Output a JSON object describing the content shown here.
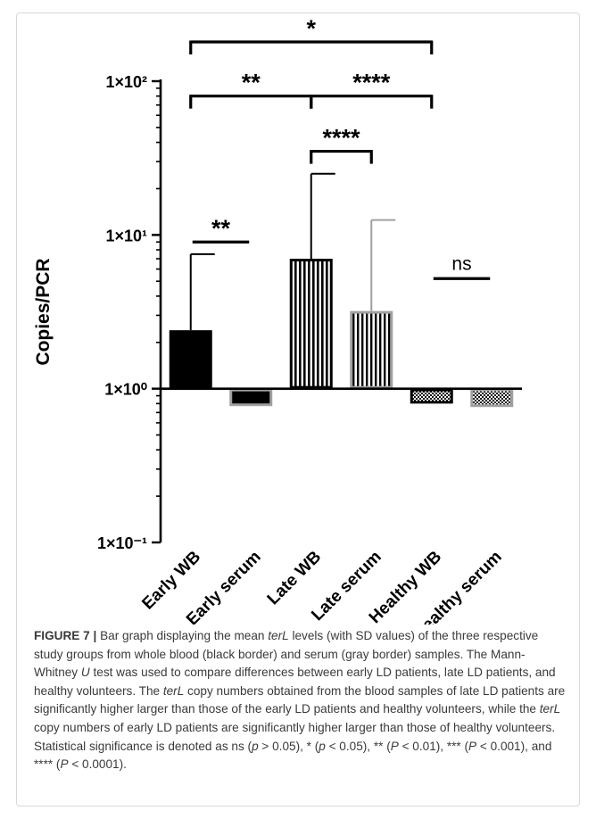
{
  "figure_label": "FIGURE 7",
  "caption_parts": [
    {
      "text": "Bar graph displaying the mean ",
      "italic": false
    },
    {
      "text": "terL",
      "italic": true
    },
    {
      "text": " levels (with SD values) of the three respective study groups from whole blood (black border) and serum (gray border) samples. The Mann-Whitney ",
      "italic": false
    },
    {
      "text": "U",
      "italic": true
    },
    {
      "text": " test was used to compare differences between early LD patients, late LD patients, and healthy volunteers. The ",
      "italic": false
    },
    {
      "text": "terL",
      "italic": true
    },
    {
      "text": " copy numbers obtained from the blood samples of late LD patients are significantly higher larger than those of the early LD patients and healthy volunteers, while the ",
      "italic": false
    },
    {
      "text": "terL",
      "italic": true
    },
    {
      "text": " copy numbers of early LD patients are significantly higher larger than those of healthy volunteers. Statistical significance is denoted as ns (",
      "italic": false
    },
    {
      "text": "p",
      "italic": true
    },
    {
      "text": " > 0.05), * (",
      "italic": false
    },
    {
      "text": "p",
      "italic": true
    },
    {
      "text": " < 0.05), ** (",
      "italic": false
    },
    {
      "text": "P",
      "italic": true
    },
    {
      "text": " < 0.01), *** (",
      "italic": false
    },
    {
      "text": "P",
      "italic": true
    },
    {
      "text": " < 0.001), and **** (",
      "italic": false
    },
    {
      "text": "P",
      "italic": true
    },
    {
      "text": " < 0.0001).",
      "italic": false
    }
  ],
  "chart_data": {
    "type": "bar",
    "title": "",
    "xlabel": "",
    "ylabel": "Copies/PCR",
    "y_scale": "log",
    "ylim": [
      0.1,
      100
    ],
    "baseline": 1,
    "y_ticks": [
      {
        "value": 100,
        "label": "1×10²"
      },
      {
        "value": 10,
        "label": "1×10¹"
      },
      {
        "value": 1,
        "label": "1×10⁰"
      },
      {
        "value": 0.1,
        "label": "1×10⁻¹"
      }
    ],
    "categories": [
      "Early WB",
      "Early serum",
      "Late WB",
      "Late serum",
      "Healthy WB",
      "Healthy serum"
    ],
    "values": [
      2.4,
      0.77,
      7.0,
      3.2,
      0.8,
      0.76
    ],
    "sd_upper": [
      7.5,
      null,
      25,
      12.5,
      null,
      null
    ],
    "fill_patterns": [
      "solid",
      "solid",
      "vertical-stripes",
      "vertical-stripes",
      "checker",
      "checker"
    ],
    "border_colors": [
      "#000000",
      "#a0a0a0",
      "#000000",
      "#a0a0a0",
      "#000000",
      "#a0a0a0"
    ],
    "significance": [
      {
        "from": 0,
        "to": 4,
        "label": "*",
        "y": 180,
        "ticks": true
      },
      {
        "from": 0,
        "to": 2,
        "label": "**",
        "y": 80,
        "ticks": true
      },
      {
        "from": 2,
        "to": 4,
        "label": "****",
        "y": 80,
        "ticks": true
      },
      {
        "from": 2,
        "to": 3,
        "label": "****",
        "y": 35,
        "ticks": true
      },
      {
        "from": 0,
        "to": 1,
        "label": "**",
        "y": 9,
        "ticks": false
      },
      {
        "from": 4,
        "to": 5,
        "label": "ns",
        "y": 5.2,
        "ticks": false
      }
    ]
  }
}
